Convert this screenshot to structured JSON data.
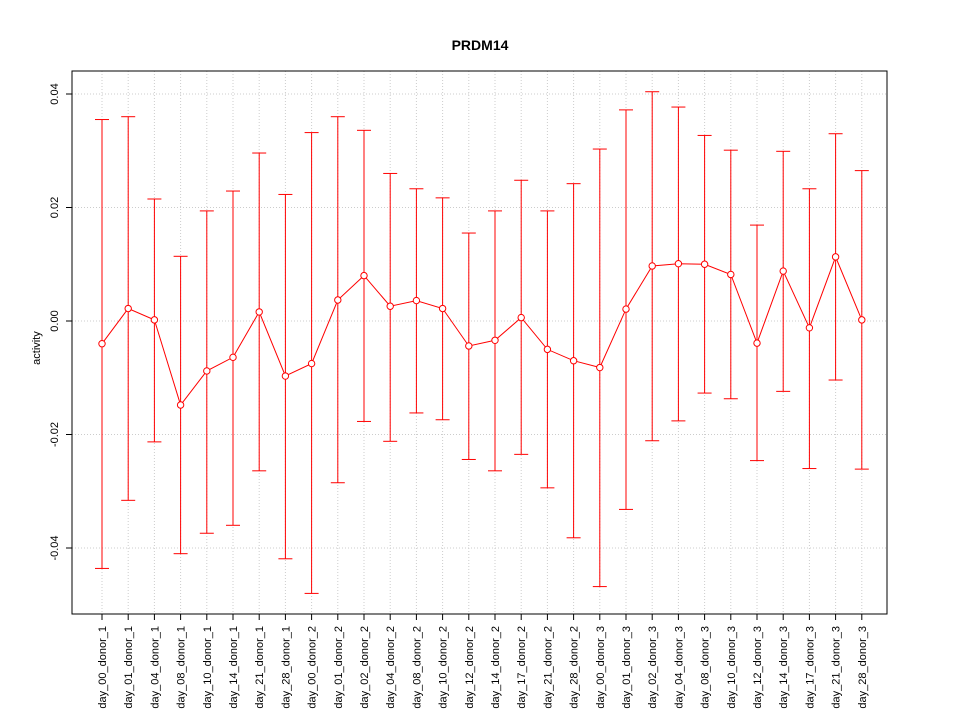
{
  "chart_data": {
    "type": "line",
    "title": "PRDM14",
    "xlabel": "",
    "ylabel": "activity",
    "ylim": [
      -0.052,
      0.044
    ],
    "yticks": [
      -0.04,
      -0.02,
      0.0,
      0.02,
      0.04
    ],
    "ytick_labels": [
      "-0.04",
      "-0.02",
      "0.00",
      "0.02",
      "0.04"
    ],
    "grid": true,
    "series_color": "#ff0000",
    "categories": [
      "day_00_donor_1",
      "day_01_donor_1",
      "day_04_donor_1",
      "day_08_donor_1",
      "day_10_donor_1",
      "day_14_donor_1",
      "day_21_donor_1",
      "day_28_donor_1",
      "day_00_donor_2",
      "day_01_donor_2",
      "day_02_donor_2",
      "day_04_donor_2",
      "day_08_donor_2",
      "day_10_donor_2",
      "day_12_donor_2",
      "day_14_donor_2",
      "day_17_donor_2",
      "day_21_donor_2",
      "day_28_donor_2",
      "day_00_donor_3",
      "day_01_donor_3",
      "day_02_donor_3",
      "day_04_donor_3",
      "day_08_donor_3",
      "day_10_donor_3",
      "day_12_donor_3",
      "day_14_donor_3",
      "day_17_donor_3",
      "day_21_donor_3",
      "day_28_donor_3"
    ],
    "series": [
      {
        "values": [
          -0.004,
          0.0022,
          0.0002,
          -0.0148,
          -0.0088,
          -0.0064,
          0.0016,
          -0.0097,
          -0.0075,
          0.0037,
          0.008,
          0.0026,
          0.0036,
          0.0022,
          -0.0044,
          -0.0034,
          0.0006,
          -0.005,
          -0.007,
          -0.0082,
          0.0021,
          0.0097,
          0.0101,
          0.01,
          0.0082,
          -0.0039,
          0.0088,
          -0.0012,
          0.0113,
          0.0002
        ],
        "upper": [
          0.0355,
          0.036,
          0.0215,
          0.0114,
          0.0194,
          0.0229,
          0.0296,
          0.0223,
          0.0332,
          0.036,
          0.0336,
          0.026,
          0.0233,
          0.0217,
          0.0155,
          0.0194,
          0.0248,
          0.0194,
          0.0242,
          0.0303,
          0.0372,
          0.0404,
          0.0377,
          0.0327,
          0.0301,
          0.0169,
          0.0299,
          0.0233,
          0.033,
          0.0265
        ],
        "lower": [
          -0.0436,
          -0.0316,
          -0.0213,
          -0.041,
          -0.0374,
          -0.036,
          -0.0264,
          -0.0419,
          -0.048,
          -0.0285,
          -0.0177,
          -0.0212,
          -0.0162,
          -0.0174,
          -0.0244,
          -0.0264,
          -0.0235,
          -0.0294,
          -0.0382,
          -0.0468,
          -0.0332,
          -0.0211,
          -0.0176,
          -0.0127,
          -0.0137,
          -0.0246,
          -0.0124,
          -0.026,
          -0.0104,
          -0.0261
        ]
      }
    ]
  }
}
